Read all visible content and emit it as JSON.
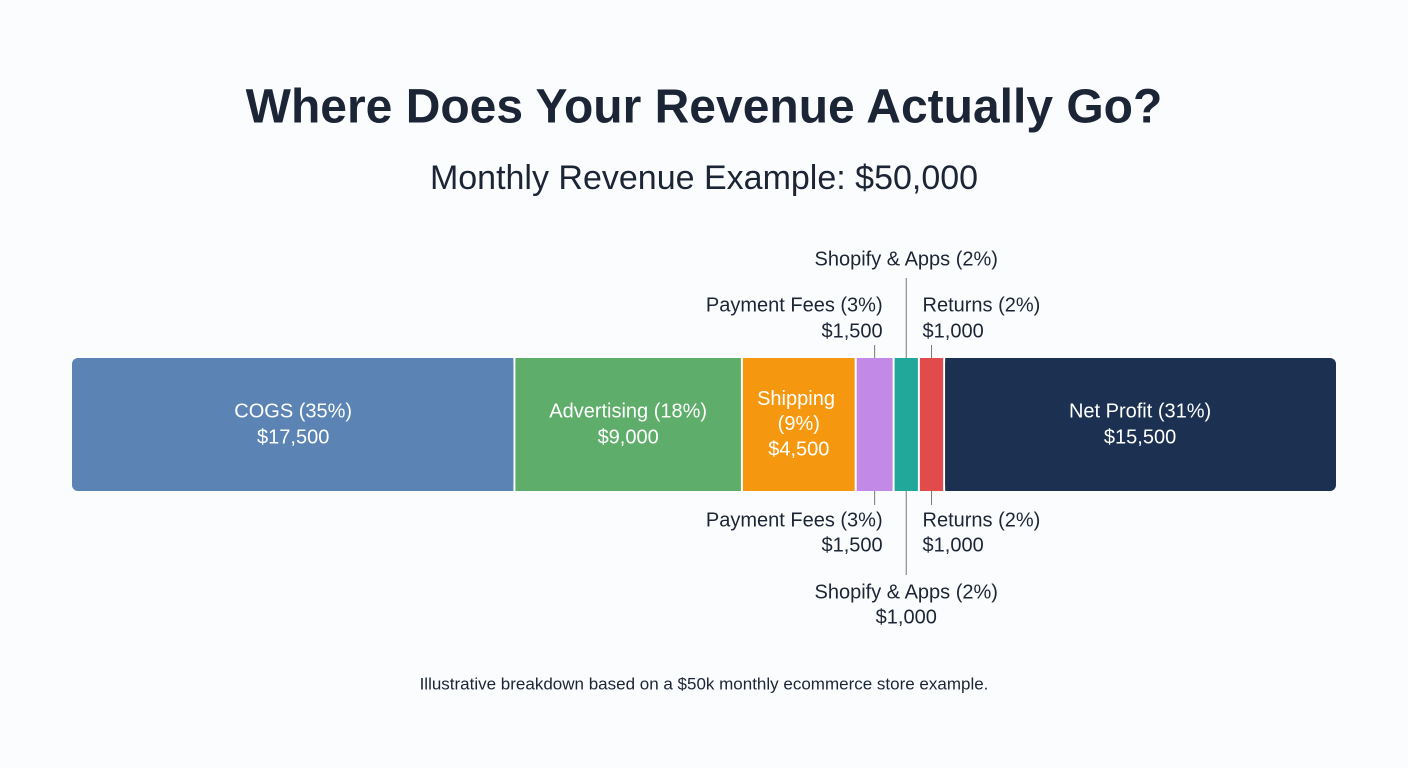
{
  "chart_data": {
    "type": "stacked_bar",
    "title": "Where Does Your Revenue Actually Go?",
    "subtitle": "Monthly Revenue Example: $50,000",
    "categories": [
      "COGS (35%)",
      "Advertising (18%)",
      "Shipping (9%)",
      "Payment Fees (3%)",
      "Shopify & Apps (2%)",
      "Returns (2%)",
      "Net Profit (31%)"
    ],
    "values": [
      17500,
      9000,
      4500,
      1500,
      1000,
      1000,
      15500
    ],
    "value_labels": [
      "$17,500",
      "$9,000",
      "$4,500",
      "$1,500",
      "$1,000",
      "$1,000",
      "$15,500"
    ],
    "colors": [
      "#5b84b5",
      "#5fad6a",
      "#f6980f",
      "#c28ae6",
      "#22a89a",
      "#e14b4b",
      "#1c3152"
    ],
    "note": "Illustrative breakdown based on a $50k monthly ecommerce store example."
  }
}
